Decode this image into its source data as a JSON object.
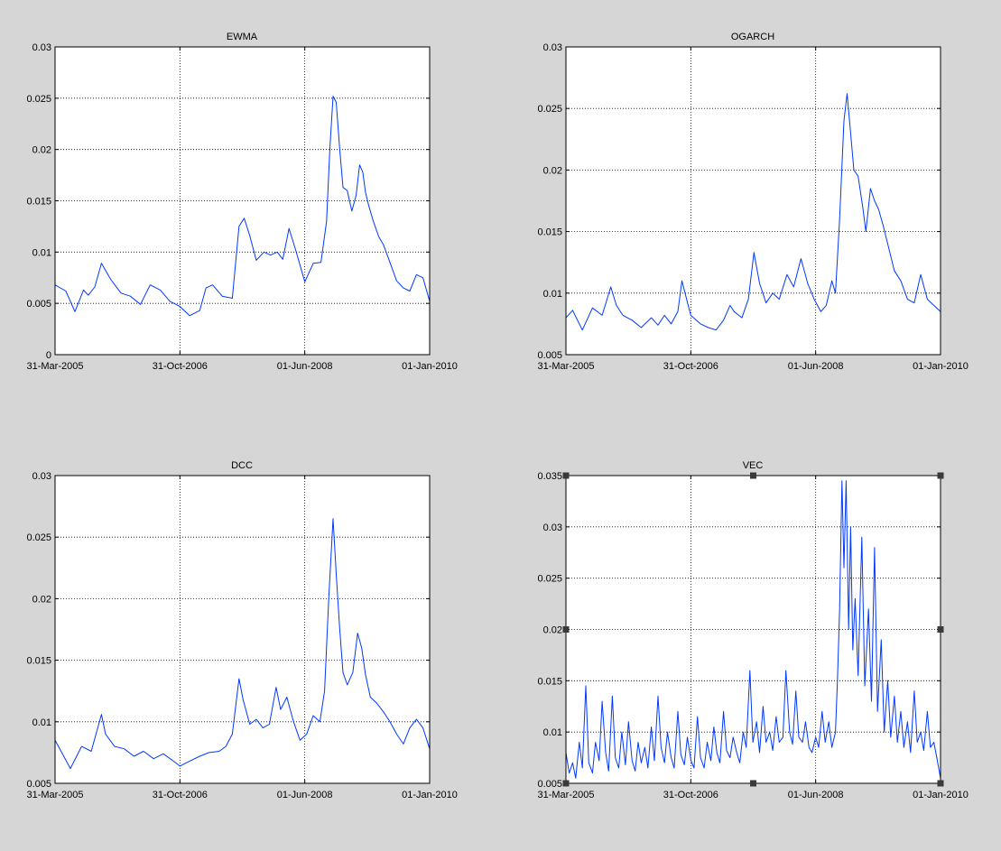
{
  "figure": {
    "background": "#d6d6d6",
    "axes_background": "#ffffff",
    "line_color": "#0038ff",
    "handle_color": "#3a3a3a"
  },
  "chart_data": [
    {
      "type": "line",
      "title": "EWMA",
      "xlabel": "",
      "ylabel": "",
      "xlim": [
        "2005-03-31",
        "2010-01-01"
      ],
      "ylim": [
        0,
        0.03
      ],
      "xticks": [
        "31-Mar-2005",
        "31-Oct-2006",
        "01-Jun-2008",
        "01-Jan-2010"
      ],
      "yticks": [
        "0",
        "0.005",
        "0.01",
        "0.015",
        "0.02",
        "0.025",
        "0.03"
      ],
      "grid": true,
      "selected": false,
      "series": [
        {
          "x": [
            "2005-03-31",
            "2005-05-20",
            "2005-07-01",
            "2005-08-10",
            "2005-09-01",
            "2005-10-01",
            "2005-11-01",
            "2005-12-15",
            "2006-01-31",
            "2006-03-15",
            "2006-05-01",
            "2006-06-15",
            "2006-08-01",
            "2006-09-15",
            "2006-10-31",
            "2006-12-15",
            "2007-01-31",
            "2007-03-01",
            "2007-04-01",
            "2007-05-15",
            "2007-07-01",
            "2007-08-01",
            "2007-08-25",
            "2007-09-20",
            "2007-10-20",
            "2007-11-25",
            "2007-12-25",
            "2008-01-25",
            "2008-02-20",
            "2008-03-20",
            "2008-04-20",
            "2008-06-01",
            "2008-07-10",
            "2008-08-15",
            "2008-09-10",
            "2008-09-25",
            "2008-10-10",
            "2008-10-25",
            "2008-11-10",
            "2008-11-25",
            "2008-12-15",
            "2009-01-05",
            "2009-01-25",
            "2009-02-10",
            "2009-02-25",
            "2009-03-10",
            "2009-03-25",
            "2009-04-15",
            "2009-05-10",
            "2009-06-01",
            "2009-07-01",
            "2009-08-01",
            "2009-09-01",
            "2009-10-01",
            "2009-11-01",
            "2009-12-01",
            "2010-01-01"
          ],
          "values": [
            0.0068,
            0.0062,
            0.0042,
            0.0063,
            0.0058,
            0.0066,
            0.0089,
            0.0073,
            0.006,
            0.0057,
            0.0049,
            0.0068,
            0.0063,
            0.0052,
            0.0047,
            0.0038,
            0.0043,
            0.0065,
            0.0068,
            0.0057,
            0.0055,
            0.0125,
            0.0133,
            0.0116,
            0.0092,
            0.01,
            0.0097,
            0.01,
            0.0093,
            0.0123,
            0.0102,
            0.0071,
            0.0089,
            0.009,
            0.013,
            0.02,
            0.0252,
            0.0246,
            0.02,
            0.0163,
            0.016,
            0.014,
            0.0155,
            0.0185,
            0.0178,
            0.0158,
            0.0145,
            0.013,
            0.0115,
            0.0107,
            0.009,
            0.0072,
            0.0065,
            0.0062,
            0.0078,
            0.0075,
            0.0052
          ]
        }
      ]
    },
    {
      "type": "line",
      "title": "OGARCH",
      "xlabel": "",
      "ylabel": "",
      "xlim": [
        "2005-03-31",
        "2010-01-01"
      ],
      "ylim": [
        0.005,
        0.03
      ],
      "xticks": [
        "31-Mar-2005",
        "31-Oct-2006",
        "01-Jun-2008",
        "01-Jan-2010"
      ],
      "yticks": [
        "0.005",
        "0.01",
        "0.015",
        "0.02",
        "0.025",
        "0.03"
      ],
      "grid": true,
      "selected": false,
      "series": [
        {
          "x": [
            "2005-03-31",
            "2005-05-01",
            "2005-06-15",
            "2005-08-01",
            "2005-09-15",
            "2005-10-25",
            "2005-11-20",
            "2005-12-20",
            "2006-02-01",
            "2006-03-15",
            "2006-05-01",
            "2006-06-01",
            "2006-07-01",
            "2006-08-01",
            "2006-09-01",
            "2006-09-20",
            "2006-10-31",
            "2006-12-15",
            "2007-01-20",
            "2007-02-25",
            "2007-04-01",
            "2007-05-01",
            "2007-05-20",
            "2007-06-25",
            "2007-07-25",
            "2007-08-20",
            "2007-09-15",
            "2007-10-15",
            "2007-11-15",
            "2007-12-15",
            "2008-01-20",
            "2008-02-20",
            "2008-03-25",
            "2008-04-25",
            "2008-05-25",
            "2008-06-25",
            "2008-07-20",
            "2008-08-15",
            "2008-09-01",
            "2008-09-20",
            "2008-10-10",
            "2008-10-25",
            "2008-11-10",
            "2008-11-25",
            "2008-12-15",
            "2009-01-05",
            "2009-01-20",
            "2009-02-10",
            "2009-03-01",
            "2009-03-20",
            "2009-04-10",
            "2009-05-01",
            "2009-06-01",
            "2009-07-01",
            "2009-08-01",
            "2009-09-01",
            "2009-10-01",
            "2009-11-01",
            "2009-12-01",
            "2010-01-01"
          ],
          "values": [
            0.008,
            0.0086,
            0.007,
            0.0088,
            0.0082,
            0.0105,
            0.009,
            0.0082,
            0.0078,
            0.0072,
            0.008,
            0.0074,
            0.0082,
            0.0075,
            0.0085,
            0.011,
            0.0082,
            0.0075,
            0.0072,
            0.007,
            0.0078,
            0.009,
            0.0085,
            0.008,
            0.0095,
            0.0133,
            0.0108,
            0.0092,
            0.01,
            0.0095,
            0.0115,
            0.0105,
            0.0128,
            0.0108,
            0.0095,
            0.0085,
            0.009,
            0.011,
            0.01,
            0.016,
            0.024,
            0.0262,
            0.023,
            0.02,
            0.0195,
            0.017,
            0.015,
            0.0185,
            0.0175,
            0.0168,
            0.0155,
            0.014,
            0.0118,
            0.011,
            0.0095,
            0.0092,
            0.0115,
            0.0095,
            0.009,
            0.0085
          ]
        }
      ]
    },
    {
      "type": "line",
      "title": "DCC",
      "xlabel": "",
      "ylabel": "",
      "xlim": [
        "2005-03-31",
        "2010-01-01"
      ],
      "ylim": [
        0.005,
        0.03
      ],
      "xticks": [
        "31-Mar-2005",
        "31-Oct-2006",
        "01-Jun-2008",
        "01-Jan-2010"
      ],
      "yticks": [
        "0.005",
        "0.01",
        "0.015",
        "0.02",
        "0.025",
        "0.03"
      ],
      "grid": true,
      "selected": false,
      "series": [
        {
          "x": [
            "2005-03-31",
            "2005-05-01",
            "2005-06-10",
            "2005-08-01",
            "2005-09-15",
            "2005-11-01",
            "2005-11-20",
            "2006-01-01",
            "2006-02-15",
            "2006-04-01",
            "2006-05-15",
            "2006-07-01",
            "2006-08-15",
            "2006-10-01",
            "2006-10-31",
            "2006-12-15",
            "2007-01-31",
            "2007-03-15",
            "2007-05-01",
            "2007-06-01",
            "2007-07-01",
            "2007-08-01",
            "2007-08-20",
            "2007-09-20",
            "2007-10-20",
            "2007-11-20",
            "2007-12-20",
            "2008-01-20",
            "2008-02-10",
            "2008-03-10",
            "2008-04-10",
            "2008-05-10",
            "2008-06-10",
            "2008-07-10",
            "2008-08-10",
            "2008-09-01",
            "2008-09-20",
            "2008-10-10",
            "2008-10-25",
            "2008-11-10",
            "2008-11-25",
            "2008-12-15",
            "2009-01-10",
            "2009-02-01",
            "2009-02-20",
            "2009-03-10",
            "2009-04-01",
            "2009-05-01",
            "2009-06-01",
            "2009-07-01",
            "2009-08-01",
            "2009-09-01",
            "2009-10-01",
            "2009-11-01",
            "2009-12-01",
            "2010-01-01"
          ],
          "values": [
            0.0085,
            0.0075,
            0.0062,
            0.008,
            0.0076,
            0.0106,
            0.009,
            0.008,
            0.0078,
            0.0072,
            0.0076,
            0.007,
            0.0074,
            0.0068,
            0.0064,
            0.0068,
            0.0072,
            0.0075,
            0.0076,
            0.008,
            0.009,
            0.0135,
            0.0118,
            0.0098,
            0.0102,
            0.0095,
            0.0098,
            0.0128,
            0.011,
            0.012,
            0.01,
            0.0085,
            0.009,
            0.0105,
            0.01,
            0.0125,
            0.02,
            0.0265,
            0.022,
            0.0175,
            0.014,
            0.013,
            0.014,
            0.0172,
            0.016,
            0.0138,
            0.012,
            0.0115,
            0.0108,
            0.01,
            0.009,
            0.0082,
            0.0095,
            0.0102,
            0.0095,
            0.0078
          ]
        }
      ]
    },
    {
      "type": "line",
      "title": "VEC",
      "xlabel": "",
      "ylabel": "",
      "xlim": [
        "2005-03-31",
        "2010-01-01"
      ],
      "ylim": [
        0.005,
        0.035
      ],
      "xticks": [
        "31-Mar-2005",
        "31-Oct-2006",
        "01-Jun-2008",
        "01-Jan-2010"
      ],
      "yticks": [
        "0.005",
        "0.01",
        "0.015",
        "0.02",
        "0.025",
        "0.03",
        "0.035"
      ],
      "grid": true,
      "selected": true,
      "series": [
        {
          "x": [
            "2005-03-31",
            "2005-04-15",
            "2005-05-01",
            "2005-05-15",
            "2005-06-01",
            "2005-06-15",
            "2005-07-01",
            "2005-07-15",
            "2005-08-01",
            "2005-08-15",
            "2005-09-01",
            "2005-09-15",
            "2005-10-01",
            "2005-10-15",
            "2005-11-01",
            "2005-11-15",
            "2005-12-01",
            "2005-12-15",
            "2006-01-01",
            "2006-01-15",
            "2006-02-01",
            "2006-02-15",
            "2006-03-01",
            "2006-03-15",
            "2006-04-01",
            "2006-04-15",
            "2006-05-01",
            "2006-05-15",
            "2006-06-01",
            "2006-06-15",
            "2006-07-01",
            "2006-07-15",
            "2006-08-01",
            "2006-08-15",
            "2006-09-01",
            "2006-09-15",
            "2006-10-01",
            "2006-10-15",
            "2006-11-01",
            "2006-11-15",
            "2006-12-01",
            "2006-12-15",
            "2007-01-01",
            "2007-01-15",
            "2007-02-01",
            "2007-02-15",
            "2007-03-01",
            "2007-03-15",
            "2007-04-01",
            "2007-04-15",
            "2007-05-01",
            "2007-05-15",
            "2007-06-01",
            "2007-06-15",
            "2007-07-01",
            "2007-07-15",
            "2007-08-01",
            "2007-08-15",
            "2007-09-01",
            "2007-09-15",
            "2007-10-01",
            "2007-10-15",
            "2007-11-01",
            "2007-11-15",
            "2007-12-01",
            "2007-12-15",
            "2008-01-01",
            "2008-01-15",
            "2008-02-01",
            "2008-02-15",
            "2008-03-01",
            "2008-03-15",
            "2008-04-01",
            "2008-04-15",
            "2008-05-01",
            "2008-05-15",
            "2008-06-01",
            "2008-06-15",
            "2008-07-01",
            "2008-07-15",
            "2008-08-01",
            "2008-08-15",
            "2008-09-01",
            "2008-09-10",
            "2008-09-20",
            "2008-10-01",
            "2008-10-10",
            "2008-10-20",
            "2008-11-01",
            "2008-11-10",
            "2008-11-20",
            "2008-12-01",
            "2008-12-15",
            "2009-01-01",
            "2009-01-15",
            "2009-02-01",
            "2009-02-15",
            "2009-03-01",
            "2009-03-15",
            "2009-04-01",
            "2009-04-15",
            "2009-05-01",
            "2009-05-15",
            "2009-06-01",
            "2009-06-15",
            "2009-07-01",
            "2009-07-15",
            "2009-08-01",
            "2009-08-15",
            "2009-09-01",
            "2009-09-15",
            "2009-10-01",
            "2009-10-15",
            "2009-11-01",
            "2009-11-15",
            "2009-12-01",
            "2009-12-15",
            "2010-01-01"
          ],
          "values": [
            0.008,
            0.006,
            0.007,
            0.0055,
            0.009,
            0.0065,
            0.0145,
            0.007,
            0.006,
            0.009,
            0.0072,
            0.013,
            0.008,
            0.0062,
            0.0135,
            0.0075,
            0.0065,
            0.01,
            0.0068,
            0.011,
            0.0072,
            0.0062,
            0.009,
            0.007,
            0.0085,
            0.0065,
            0.0105,
            0.0072,
            0.0135,
            0.0085,
            0.007,
            0.01,
            0.0075,
            0.0065,
            0.012,
            0.0078,
            0.0068,
            0.0095,
            0.0072,
            0.0065,
            0.0115,
            0.0075,
            0.0065,
            0.009,
            0.0072,
            0.0105,
            0.008,
            0.007,
            0.012,
            0.0082,
            0.0075,
            0.0095,
            0.008,
            0.007,
            0.01,
            0.0085,
            0.016,
            0.009,
            0.011,
            0.008,
            0.0125,
            0.009,
            0.01,
            0.0082,
            0.0115,
            0.009,
            0.0095,
            0.016,
            0.01,
            0.0088,
            0.014,
            0.0095,
            0.009,
            0.011,
            0.0085,
            0.008,
            0.0095,
            0.0085,
            0.012,
            0.009,
            0.011,
            0.0085,
            0.01,
            0.015,
            0.022,
            0.0345,
            0.026,
            0.0345,
            0.02,
            0.03,
            0.018,
            0.023,
            0.0155,
            0.029,
            0.0145,
            0.022,
            0.013,
            0.028,
            0.012,
            0.019,
            0.01,
            0.015,
            0.0095,
            0.0135,
            0.009,
            0.012,
            0.0085,
            0.011,
            0.008,
            0.014,
            0.009,
            0.01,
            0.0082,
            0.012,
            0.0085,
            0.009,
            0.0075,
            0.0055
          ]
        }
      ]
    }
  ]
}
